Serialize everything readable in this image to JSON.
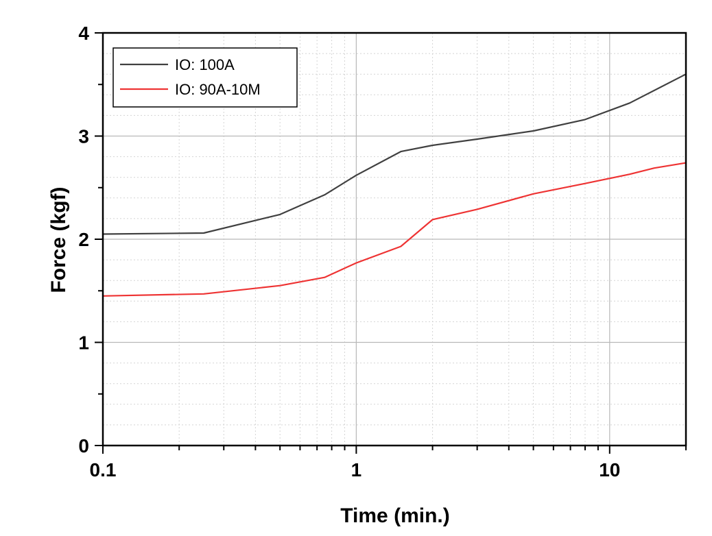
{
  "chart_data": {
    "type": "line",
    "xlabel": "Time (min.)",
    "ylabel": "Force (kgf)",
    "xscale": "log",
    "xlim": [
      0.1,
      20
    ],
    "ylim": [
      0,
      4
    ],
    "xticks": [
      {
        "value": 0.1,
        "label": "0.1"
      },
      {
        "value": 1,
        "label": "1"
      },
      {
        "value": 10,
        "label": "10"
      }
    ],
    "yticks": [
      {
        "value": 0,
        "label": "0"
      },
      {
        "value": 1,
        "label": "1"
      },
      {
        "value": 2,
        "label": "2"
      },
      {
        "value": 3,
        "label": "3"
      },
      {
        "value": 4,
        "label": "4"
      }
    ],
    "grid": true,
    "legend_position": "top-left",
    "series": [
      {
        "name": "IO: 100A",
        "color": "#404040",
        "x": [
          0.1,
          0.25,
          0.5,
          0.75,
          1.0,
          1.5,
          2.0,
          3.0,
          5.0,
          8.0,
          12.0,
          20.0
        ],
        "y": [
          2.05,
          2.06,
          2.24,
          2.43,
          2.62,
          2.85,
          2.91,
          2.97,
          3.05,
          3.16,
          3.32,
          3.6
        ]
      },
      {
        "name": "IO: 90A-10M",
        "color": "#ee3333",
        "x": [
          0.1,
          0.25,
          0.5,
          0.75,
          1.0,
          1.5,
          2.0,
          3.0,
          5.0,
          8.0,
          12.0,
          15.0,
          20.0
        ],
        "y": [
          1.45,
          1.47,
          1.55,
          1.63,
          1.77,
          1.93,
          2.19,
          2.29,
          2.44,
          2.54,
          2.63,
          2.69,
          2.74
        ]
      }
    ]
  }
}
